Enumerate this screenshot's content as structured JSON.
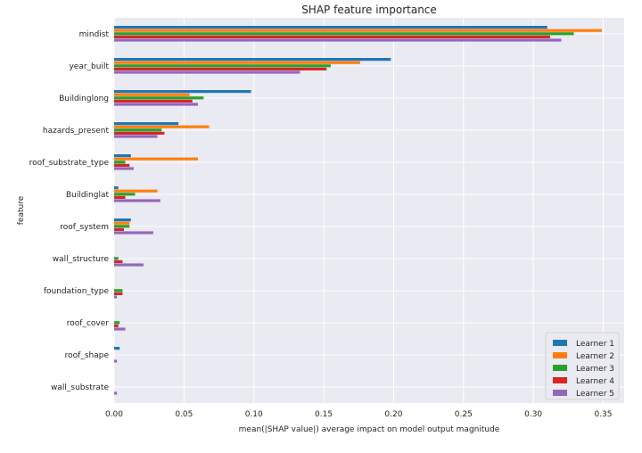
{
  "chart_data": {
    "type": "bar",
    "orientation": "horizontal",
    "title": "SHAP feature importance",
    "xlabel": "mean(|SHAP value|) average impact on model output magnitude",
    "ylabel": "feature",
    "xlim": [
      0,
      0.365
    ],
    "xticks": [
      0.0,
      0.05,
      0.1,
      0.15,
      0.2,
      0.25,
      0.3,
      0.35
    ],
    "xtick_labels": [
      "0.00",
      "0.05",
      "0.10",
      "0.15",
      "0.20",
      "0.25",
      "0.30",
      "0.35"
    ],
    "grid": true,
    "legend_position": "bottom-right",
    "categories": [
      "mindist",
      "year_built",
      "Buildinglong",
      "hazards_present",
      "roof_substrate_type",
      "Buildinglat",
      "roof_system",
      "wall_structure",
      "foundation_type",
      "roof_cover",
      "roof_shape",
      "wall_substrate"
    ],
    "series": [
      {
        "name": "Learner 1",
        "color": "#1f77b4",
        "values": [
          0.31,
          0.198,
          0.098,
          0.046,
          0.012,
          0.003,
          0.012,
          0.0,
          0.0,
          0.0,
          0.004,
          0.0
        ]
      },
      {
        "name": "Learner 2",
        "color": "#ff7f0e",
        "values": [
          0.349,
          0.176,
          0.054,
          0.068,
          0.06,
          0.031,
          0.011,
          0.0,
          0.0,
          0.0,
          0.0,
          0.0
        ]
      },
      {
        "name": "Learner 3",
        "color": "#2ca02c",
        "values": [
          0.329,
          0.155,
          0.064,
          0.034,
          0.008,
          0.015,
          0.011,
          0.003,
          0.006,
          0.004,
          0.0,
          0.0
        ]
      },
      {
        "name": "Learner 4",
        "color": "#d62728",
        "values": [
          0.312,
          0.152,
          0.056,
          0.036,
          0.011,
          0.008,
          0.007,
          0.006,
          0.006,
          0.003,
          0.0,
          0.0
        ]
      },
      {
        "name": "Learner 5",
        "color": "#9467bd",
        "values": [
          0.32,
          0.133,
          0.06,
          0.031,
          0.014,
          0.033,
          0.028,
          0.021,
          0.002,
          0.008,
          0.002,
          0.002
        ]
      }
    ]
  }
}
